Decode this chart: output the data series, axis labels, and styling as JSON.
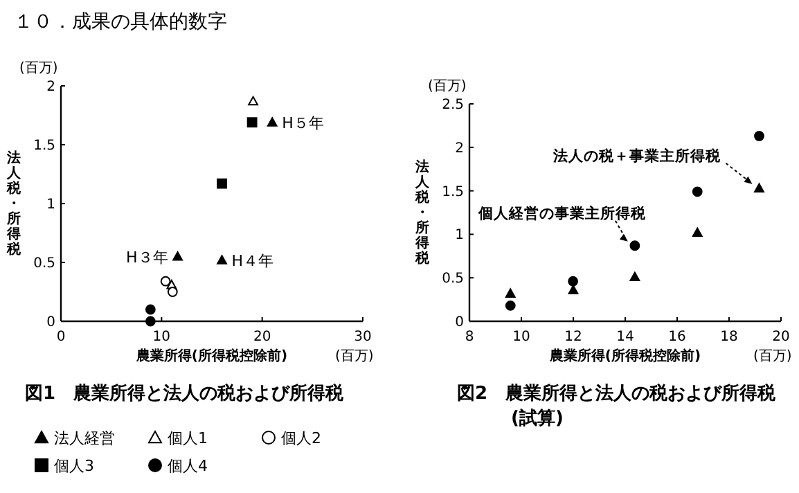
{
  "chart_data": [
    {
      "type": "scatter",
      "subtitle": "１０．成果の具体的数字",
      "title": "図1　農業所得と法人の税および所得税",
      "xlabel": "農業所得(所得税控除前)",
      "ylabel": "法人税・所得税",
      "xlim": [
        0,
        30
      ],
      "xticks": [
        0,
        10,
        20,
        30
      ],
      "ylim": [
        0,
        2
      ],
      "yticks": [
        0,
        0.5,
        1,
        1.5,
        2
      ],
      "legend": "bottom",
      "annotations": [
        "(百万)",
        "(百万)",
        {
          "text": "H３年",
          "x": 11.6,
          "y": 0.55
        },
        {
          "text": "H４年",
          "x": 16,
          "y": 0.52
        },
        {
          "text": "H５年",
          "x": 21,
          "y": 1.69
        }
      ],
      "series": [
        {
          "name": "法人経営",
          "marker": "triangle",
          "color": "#000000",
          "x": [
            11.6,
            16,
            21
          ],
          "values": [
            0.55,
            0.52,
            1.69
          ]
        },
        {
          "name": "個人1",
          "marker": "triangle",
          "color": "#ffffff",
          "x": [
            11,
            19.1
          ],
          "values": [
            0.31,
            1.87
          ]
        },
        {
          "name": "個人2",
          "marker": "circle",
          "color": "#ffffff",
          "x": [
            10.4,
            11.1
          ],
          "values": [
            0.34,
            0.25
          ]
        },
        {
          "name": "個人3",
          "marker": "square",
          "color": "#000000",
          "x": [
            16,
            19
          ],
          "values": [
            1.17,
            1.69
          ]
        },
        {
          "name": "個人4",
          "marker": "circle",
          "color": "#000000",
          "x": [
            8.9,
            8.9
          ],
          "values": [
            0.1,
            0
          ]
        }
      ]
    },
    {
      "type": "scatter",
      "title": "図2　農業所得と法人の税および所得税(試算)",
      "xlabel": "農業所得(所得税控除前)",
      "ylabel": "法人税・所得税",
      "xlim": [
        8,
        20
      ],
      "xticks": [
        8,
        10,
        12,
        14,
        16,
        18,
        20
      ],
      "ylim": [
        0,
        2.5
      ],
      "yticks": [
        0,
        0.5,
        1,
        1.5,
        2,
        2.5
      ],
      "annotations": [
        "(百万)",
        "(百万)",
        {
          "text": "法人の税＋事業主所得税",
          "x": 19.16,
          "y": 1.53
        },
        {
          "text": "個人経営の事業主所得税",
          "x": 14.37,
          "y": 0.87
        }
      ],
      "series": [
        {
          "marker": "circle",
          "color": "#000000",
          "x": [
            9.58,
            11.99,
            14.37,
            16.78,
            19.16
          ],
          "values": [
            0.18,
            0.46,
            0.87,
            1.49,
            2.13
          ]
        },
        {
          "marker": "triangle",
          "color": "#000000",
          "x": [
            9.58,
            12,
            14.37,
            16.78,
            19.16
          ],
          "values": [
            0.32,
            0.36,
            0.51,
            1.02,
            1.53
          ]
        }
      ]
    }
  ]
}
